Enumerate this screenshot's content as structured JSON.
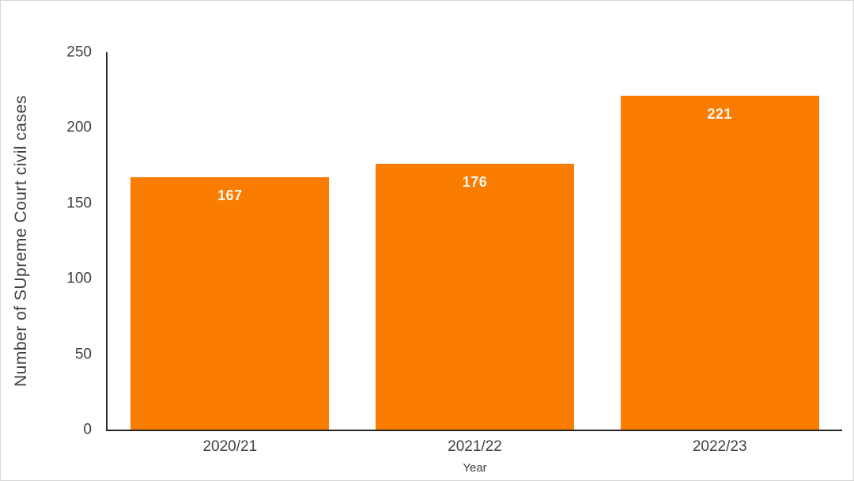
{
  "chart_data": {
    "type": "bar",
    "categories": [
      "2020/21",
      "2021/22",
      "2022/23"
    ],
    "values": [
      167,
      176,
      221
    ],
    "title": "",
    "xlabel": "Year",
    "ylabel": "Number of SUpreme Court civil cases",
    "ylim": [
      0,
      250
    ],
    "yticks": [
      0,
      50,
      100,
      150,
      200,
      250
    ],
    "grid": false,
    "legend_position": "none",
    "bar_color": "#FA7D02",
    "data_label_color": "#FDF8F0",
    "axis_line_color": "#262626",
    "tick_text_color": "#404040"
  }
}
